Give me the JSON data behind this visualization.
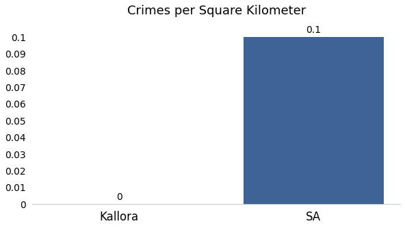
{
  "categories": [
    "Kallora",
    "SA"
  ],
  "values": [
    0.0,
    0.1
  ],
  "bar_color": "#3d6494",
  "title": "Crimes per Square Kilometer",
  "title_fontsize": 13,
  "ylim": [
    0,
    0.108
  ],
  "yticks": [
    0,
    0.01,
    0.02,
    0.03,
    0.04,
    0.05,
    0.06,
    0.07,
    0.08,
    0.09,
    0.1
  ],
  "bar_value_labels": [
    "0",
    "0.1"
  ],
  "background_color": "#ffffff",
  "bar_width": 0.72,
  "tick_label_fontsize": 10,
  "xlabel_fontsize": 12
}
